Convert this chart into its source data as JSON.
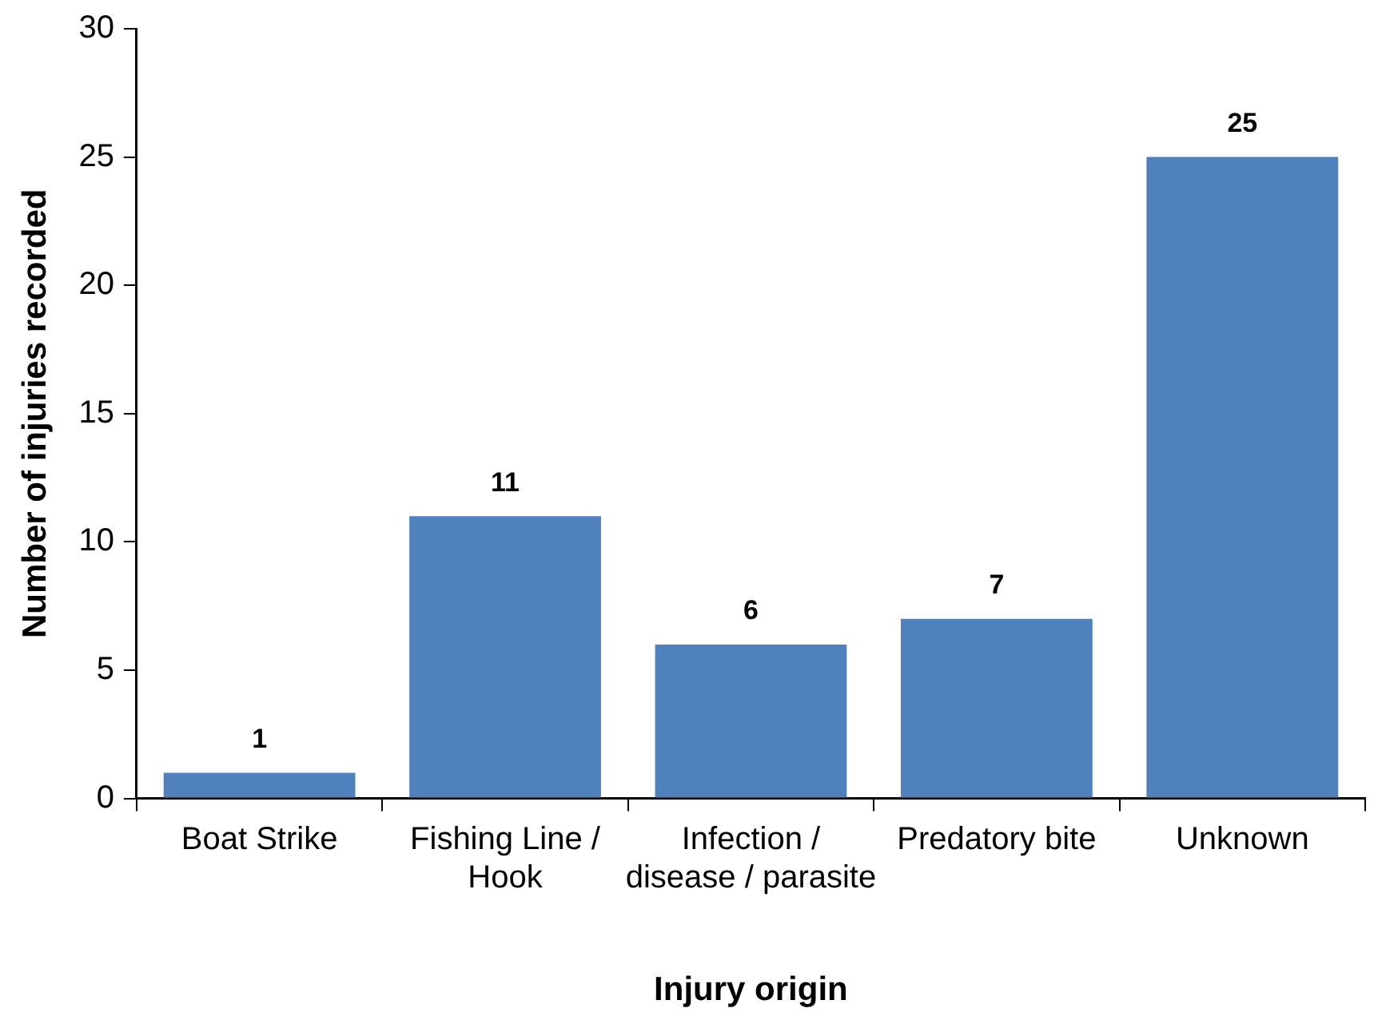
{
  "chart_data": {
    "type": "bar",
    "xlabel": "Injury origin",
    "ylabel": "Number of injuries recorded",
    "categories": [
      "Boat Strike",
      "Fishing Line / Hook",
      "Infection / disease / parasite",
      "Predatory bite",
      "Unknown"
    ],
    "values": [
      1,
      11,
      6,
      7,
      25
    ],
    "color": "#4f81bd",
    "ylim": [
      0,
      30
    ],
    "yticks": [
      0,
      5,
      10,
      15,
      20,
      25,
      30
    ],
    "grid": false,
    "legend": false,
    "data_labels": true
  }
}
